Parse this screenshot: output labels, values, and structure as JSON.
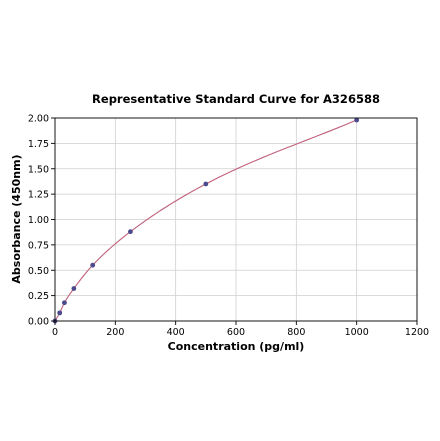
{
  "chart_data": {
    "type": "scatter",
    "title": "Representative Standard Curve for A326588",
    "xlabel": "Concentration (pg/ml)",
    "ylabel": "Absorbance (450nm)",
    "xlim": [
      0,
      1200
    ],
    "ylim": [
      0,
      2.0
    ],
    "xticks": [
      0,
      200,
      400,
      600,
      800,
      1000,
      1200
    ],
    "xtick_labels": [
      "0",
      "200",
      "400",
      "600",
      "800",
      "1000",
      "1200"
    ],
    "yticks": [
      0,
      0.25,
      0.5,
      0.75,
      1.0,
      1.25,
      1.5,
      1.75,
      2.0
    ],
    "ytick_labels": [
      "0.00",
      "0.25",
      "0.50",
      "0.75",
      "1.00",
      "1.25",
      "1.50",
      "1.75",
      "2.00"
    ],
    "grid": true,
    "series": [
      {
        "x": [
          0,
          15.6,
          31.25,
          62.5,
          125,
          250,
          500,
          1000
        ],
        "y": [
          0.0,
          0.08,
          0.18,
          0.32,
          0.55,
          0.88,
          1.35,
          1.98
        ],
        "marker_color": "#4a4a8c",
        "fit_line": true,
        "line_color": "#c0607a"
      }
    ]
  }
}
